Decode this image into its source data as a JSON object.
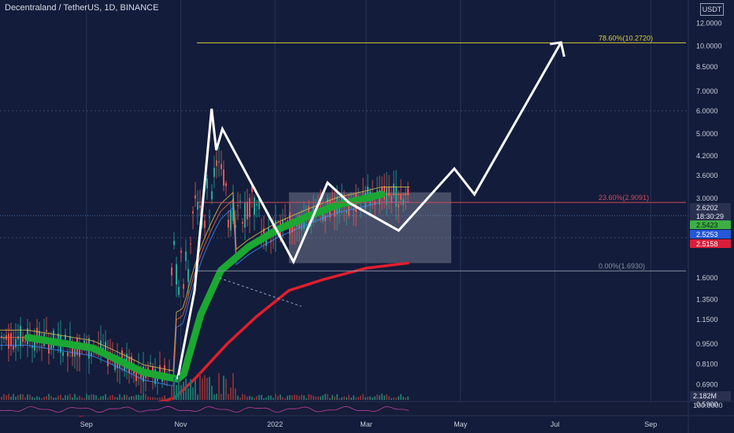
{
  "header": {
    "symbol": "Decentraland / TetherUS, 1D, BINANCE",
    "currency_button": "USDT"
  },
  "colors": {
    "background": "#131c3a",
    "white_path": "#ffffff",
    "ema_short": "#1aa832",
    "ema_long": "#e01e2e",
    "fib_top": "#d8cf3a",
    "fib_mid": "#d14a5c",
    "fib_bottom": "#8a90a2",
    "range_box": "#8a92a8"
  },
  "chart_data": {
    "type": "line",
    "title": "Decentraland / TetherUS, 1D, BINANCE",
    "xlabel": "",
    "ylabel": "",
    "y_scale": "log",
    "ylim": [
      0.52,
      13.5
    ],
    "y_ticks": [
      "12.0000",
      "10.0000",
      "8.5000",
      "7.0000",
      "6.0000",
      "5.0000",
      "4.2000",
      "3.6000",
      "3.0000",
      "1.6000",
      "1.3500",
      "1.1500",
      "0.9500",
      "0.8100",
      "0.6900",
      "0.5900"
    ],
    "x_ticks": [
      "Sep",
      "Nov",
      "2022",
      "Mar",
      "May",
      "Jul",
      "Sep"
    ],
    "x_tick_positions": [
      "2021-09-01",
      "2021-11-01",
      "2022-01-01",
      "2022-03-01",
      "2022-05-01",
      "2022-07-01",
      "2022-09-01"
    ],
    "fib_levels": [
      {
        "label": "78.60%(10.2720)",
        "value": 10.272
      },
      {
        "label": "23.60%(2.9091)",
        "value": 2.9091
      },
      {
        "label": "0.00%(1.6930)",
        "value": 1.693
      }
    ],
    "price_labels": [
      {
        "text": "2.6202",
        "kind": "last"
      },
      {
        "text": "18:30:29",
        "kind": "countdown"
      },
      {
        "text": "2.5423",
        "kind": "ema_short"
      },
      {
        "text": "2.5253",
        "kind": "ema_mid"
      },
      {
        "text": "2.5158",
        "kind": "ema_long"
      }
    ],
    "volume_label": "2.182M",
    "oscillator_label": "100.0000",
    "range_box": {
      "from": "2022-01-10",
      "to": "2022-04-25",
      "low": 1.8,
      "high": 3.15
    },
    "projection_path": {
      "name": "",
      "points": [
        {
          "x": "2021-10-30",
          "y": 0.72
        },
        {
          "x": "2021-11-10",
          "y": 1.45
        },
        {
          "x": "2021-11-21",
          "y": 6.1
        },
        {
          "x": "2021-11-24",
          "y": 4.4
        },
        {
          "x": "2021-11-28",
          "y": 5.2
        },
        {
          "x": "2022-01-13",
          "y": 1.82
        },
        {
          "x": "2022-02-04",
          "y": 3.4
        },
        {
          "x": "2022-02-18",
          "y": 2.9
        },
        {
          "x": "2022-03-22",
          "y": 2.33
        },
        {
          "x": "2022-04-27",
          "y": 3.8
        },
        {
          "x": "2022-05-10",
          "y": 3.1
        },
        {
          "x": "2022-07-05",
          "y": 10.3
        }
      ]
    },
    "series": [
      {
        "name": "",
        "role": "ema_short_band",
        "x": [
          "2021-07-25",
          "2021-09-05",
          "2021-10-08",
          "2021-10-30",
          "2021-11-03",
          "2021-11-14",
          "2021-11-27",
          "2021-12-15",
          "2022-01-03",
          "2022-01-22",
          "2022-02-10",
          "2022-02-28",
          "2022-03-11"
        ],
        "values": [
          1.0,
          0.92,
          0.76,
          0.72,
          0.75,
          1.2,
          1.7,
          2.05,
          2.35,
          2.6,
          2.85,
          3.0,
          3.1
        ]
      },
      {
        "name": "",
        "role": "ema_long",
        "x": [
          "2021-08-28",
          "2021-10-02",
          "2021-10-28",
          "2021-11-10",
          "2021-12-01",
          "2021-12-20",
          "2022-01-10",
          "2022-02-01",
          "2022-03-01",
          "2022-03-28"
        ],
        "values": [
          0.54,
          0.57,
          0.62,
          0.72,
          0.95,
          1.18,
          1.45,
          1.58,
          1.73,
          1.8
        ]
      }
    ]
  }
}
